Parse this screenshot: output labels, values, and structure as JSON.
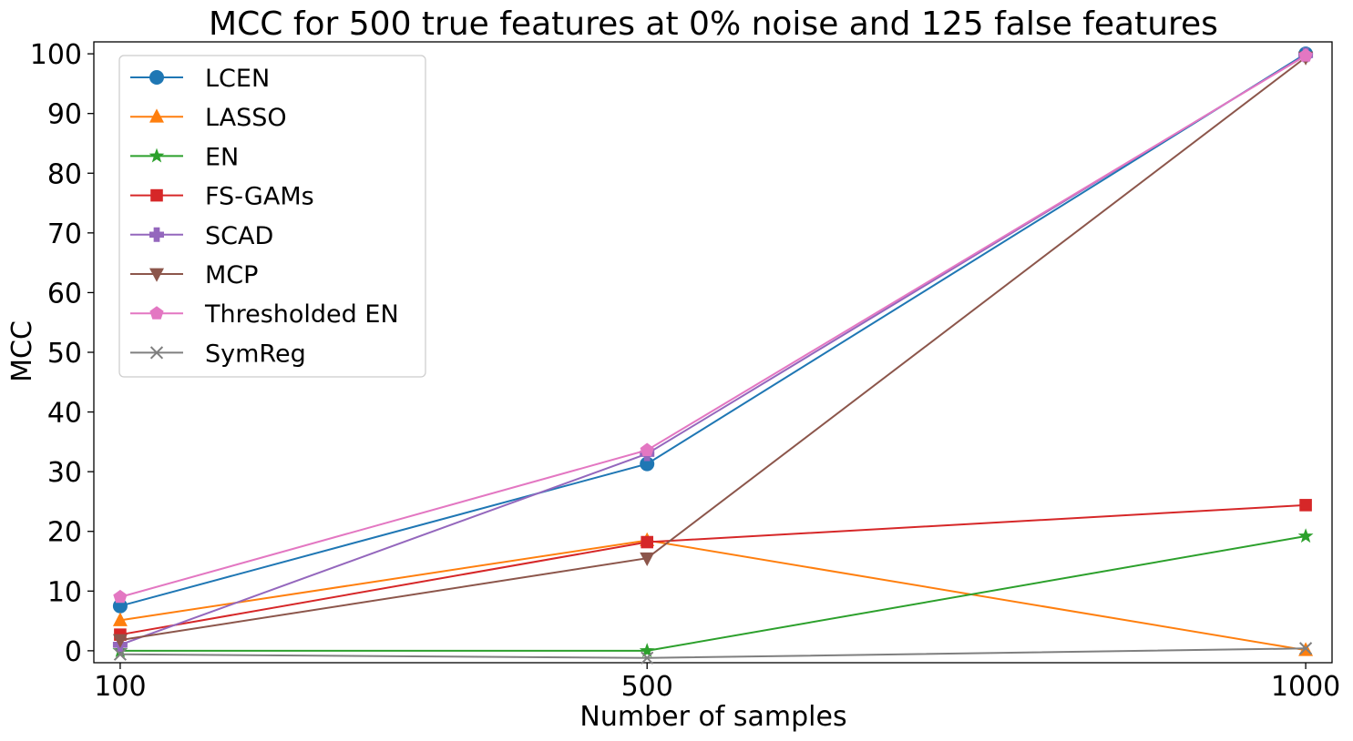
{
  "chart_data": {
    "type": "line",
    "title": "MCC for 500 true features at 0% noise and 125 false features",
    "xlabel": "Number of samples",
    "ylabel": "MCC",
    "x": [
      100,
      500,
      1000
    ],
    "xticks": [
      "100",
      "500",
      "1000"
    ],
    "yticks": [
      "0",
      "10",
      "20",
      "30",
      "40",
      "50",
      "60",
      "70",
      "80",
      "90",
      "100"
    ],
    "xlim": [
      80,
      1020
    ],
    "ylim": [
      -2,
      102
    ],
    "grid": false,
    "legend_position": "upper-left",
    "series": [
      {
        "name": "LCEN",
        "color": "#1f77b4",
        "marker": "circle",
        "values": [
          7.5,
          31.3,
          100
        ]
      },
      {
        "name": "LASSO",
        "color": "#ff7f0e",
        "marker": "triangle-up",
        "values": [
          5.1,
          18.5,
          0.1
        ]
      },
      {
        "name": "EN",
        "color": "#2ca02c",
        "marker": "star",
        "values": [
          0.0,
          0.0,
          19.2
        ]
      },
      {
        "name": "FS-GAMs",
        "color": "#d62728",
        "marker": "square",
        "values": [
          2.7,
          18.2,
          24.4
        ]
      },
      {
        "name": "SCAD",
        "color": "#9467bd",
        "marker": "plus",
        "values": [
          1.0,
          33.0,
          99.8
        ]
      },
      {
        "name": "MCP",
        "color": "#8c564b",
        "marker": "triangle-down",
        "values": [
          1.8,
          15.5,
          99.4
        ]
      },
      {
        "name": "Thresholded EN",
        "color": "#e377c2",
        "marker": "pentagon",
        "values": [
          9.0,
          33.6,
          99.7
        ]
      },
      {
        "name": "SymReg",
        "color": "#7f7f7f",
        "marker": "x",
        "values": [
          -0.6,
          -1.2,
          0.4
        ]
      }
    ]
  }
}
